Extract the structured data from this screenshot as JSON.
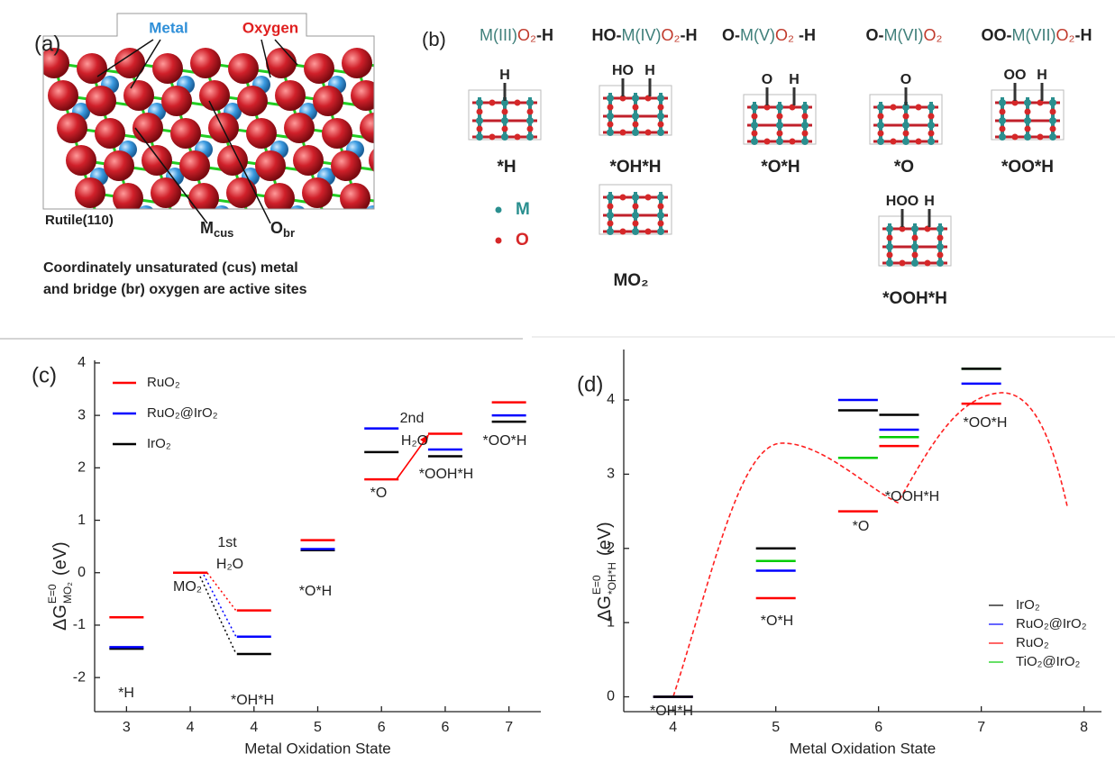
{
  "panel_a": {
    "label": "(a)",
    "metal": "Metal",
    "oxygen": "Oxygen",
    "surface": "Rutile(110)",
    "m_cus": {
      "text": "M",
      "sub": "cus"
    },
    "o_br": {
      "text": "O",
      "sub": "br"
    },
    "caption": [
      "Coordinately unsaturated (cus) metal",
      "and  bridge (br) oxygen are active sites"
    ]
  },
  "panel_b": {
    "label": "(b)",
    "formulas": [
      [
        {
          "text": "M(III)",
          "color": "#3f7f7a"
        },
        {
          "text": "O₂",
          "color": "#c0392b"
        },
        {
          "text": "-H",
          "color": "#222222"
        }
      ],
      [
        {
          "text": "HO-",
          "color": "#222222"
        },
        {
          "text": "M(IV)",
          "color": "#3f7f7a"
        },
        {
          "text": "O₂",
          "color": "#c0392b"
        },
        {
          "text": "-H",
          "color": "#222222"
        }
      ],
      [
        {
          "text": "O-",
          "color": "#222222"
        },
        {
          "text": "M(V)",
          "color": "#3f7f7a"
        },
        {
          "text": "O₂",
          "color": "#c0392b"
        },
        {
          "text": " -H",
          "color": "#222222"
        }
      ],
      [
        {
          "text": "O-",
          "color": "#222222"
        },
        {
          "text": "M(VI)",
          "color": "#3f7f7a"
        },
        {
          "text": "O₂",
          "color": "#c0392b"
        }
      ],
      [
        {
          "text": "OO-",
          "color": "#222222"
        },
        {
          "text": "M(VII)",
          "color": "#3f7f7a"
        },
        {
          "text": "O₂",
          "color": "#c0392b"
        },
        {
          "text": "-H",
          "color": "#222222"
        }
      ]
    ],
    "structures": [
      {
        "label": "*H",
        "tops": [
          "H"
        ]
      },
      {
        "label": "*OH*H",
        "tops": [
          "HO",
          "H"
        ]
      },
      {
        "label": "*O*H",
        "tops": [
          "O",
          "H"
        ]
      },
      {
        "label": "*O",
        "tops": [
          "O"
        ]
      },
      {
        "label": "*OO*H",
        "tops": [
          "OO",
          "H"
        ]
      },
      {
        "label": "MO₂"
      },
      {
        "label": "*OOH*H",
        "tops": [
          "HOO",
          "H"
        ]
      }
    ],
    "legend": [
      {
        "text": "M",
        "color": "#2a8f8f"
      },
      {
        "text": "O",
        "color": "#d62728"
      }
    ]
  },
  "chart_data": [
    {
      "type": "level",
      "label": "(c)",
      "categories": [
        "3",
        "4",
        "4",
        "5",
        "6",
        "6",
        "7"
      ],
      "level_labels": [
        "*H",
        "MO₂",
        "*OH*H",
        "*O*H",
        "*O",
        "*OOH*H",
        "*OO*H"
      ],
      "series": [
        {
          "name": "RuO₂",
          "color": "#ff0000",
          "values": [
            -0.85,
            0,
            -0.72,
            0.62,
            1.78,
            2.65,
            3.25
          ]
        },
        {
          "name": "RuO₂@IrO₂",
          "color": "#0000ff",
          "values": [
            -1.42,
            0,
            -1.22,
            0.45,
            2.75,
            2.35,
            3.0
          ]
        },
        {
          "name": "IrO₂",
          "color": "#000000",
          "values": [
            -1.45,
            0,
            -1.55,
            0.43,
            2.3,
            2.22,
            2.88
          ]
        }
      ],
      "annotations": [
        "1st",
        "H₂O",
        "2nd",
        "H₂O"
      ],
      "xlabel": "Metal Oxidation State",
      "ylabel": {
        "text": "ΔG",
        "sup": "E=0",
        "sub": "MO₂",
        "unit": "(eV)"
      },
      "ylim": [
        -2.65,
        4.05
      ],
      "yticks": [
        -2,
        -1,
        0,
        1,
        2,
        3,
        4
      ],
      "legend": "upper left"
    },
    {
      "type": "level",
      "label": "(d)",
      "x": [
        4,
        5,
        5.8,
        6.2,
        7
      ],
      "level_labels": [
        "*OH*H",
        "*O*H",
        "*O",
        "*OOH*H",
        "*OO*H"
      ],
      "series": [
        {
          "name": "IrO₂",
          "color": "#000000",
          "values": [
            0,
            2.0,
            3.86,
            3.8,
            4.42
          ]
        },
        {
          "name": "RuO₂@IrO₂",
          "color": "#0000ff",
          "values": [
            0,
            1.7,
            4.0,
            3.6,
            4.22
          ]
        },
        {
          "name": "RuO₂",
          "color": "#ff0000",
          "values": [
            0,
            1.33,
            2.5,
            3.38,
            3.95
          ]
        },
        {
          "name": "TiO₂@IrO₂",
          "color": "#00cc00",
          "values": [
            0,
            1.83,
            3.22,
            3.5,
            4.42
          ]
        }
      ],
      "xlabel": "Metal Oxidation State",
      "ylabel": {
        "text": "ΔG",
        "sup": "E=0",
        "sub": "*OH*H",
        "unit": "(eV)"
      },
      "xlim": [
        3.52,
        8.17
      ],
      "xticks": [
        4,
        5,
        6,
        7,
        8
      ],
      "ylim": [
        -0.2,
        4.68
      ],
      "yticks": [
        0,
        1,
        2,
        3,
        4
      ],
      "legend": "lower right"
    }
  ]
}
